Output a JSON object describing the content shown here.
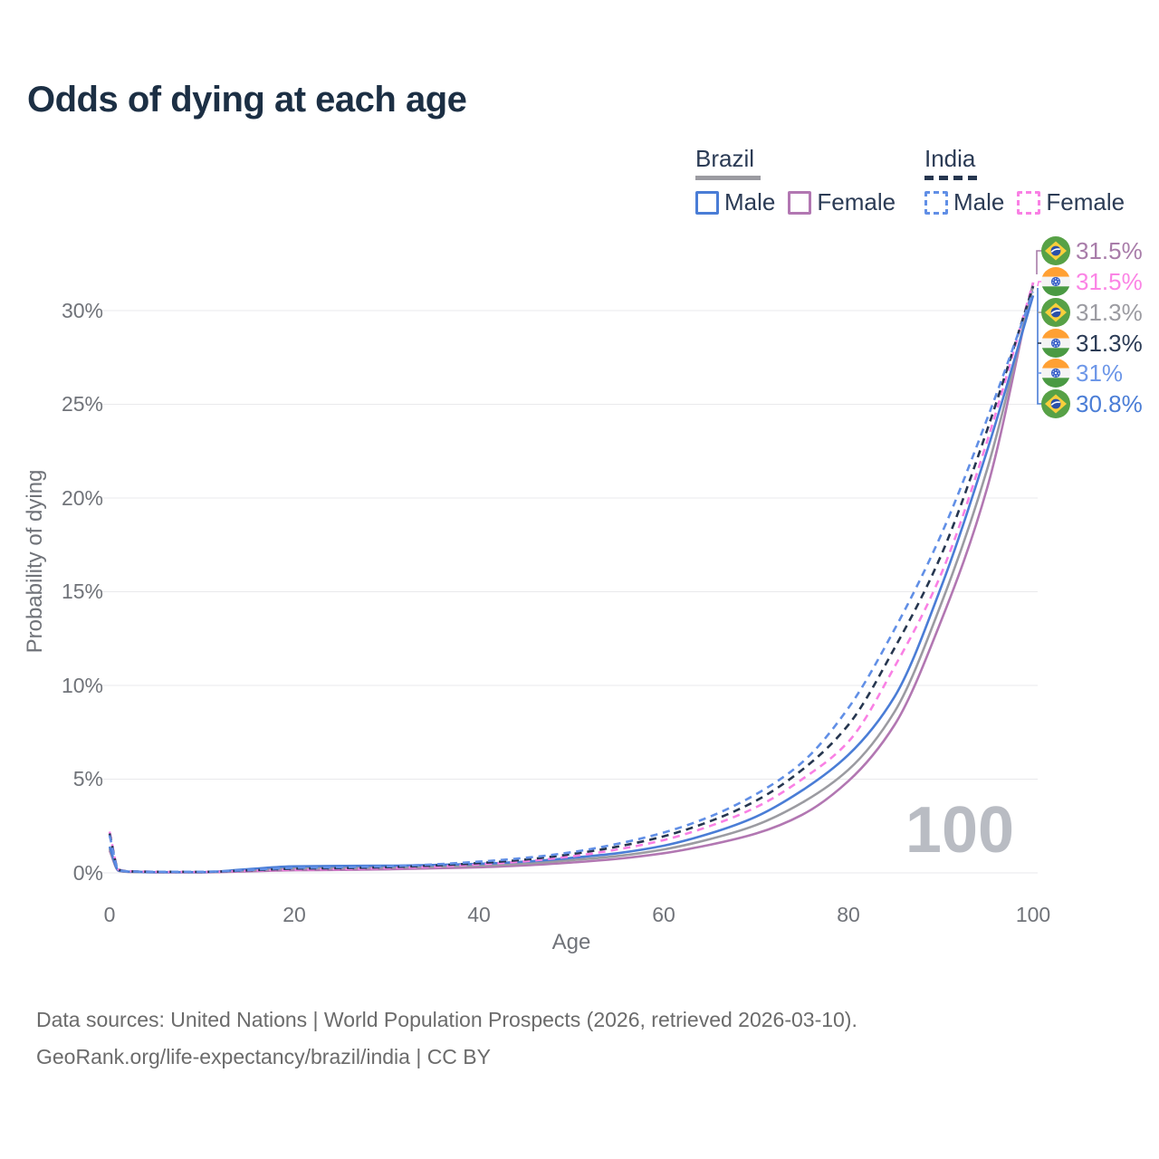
{
  "page": {
    "title": "Odds of dying at each age"
  },
  "legend": {
    "groups": [
      {
        "label": "Brazil",
        "style": "solid",
        "underline_color": "#9b9ba1",
        "items": [
          {
            "label": "Male",
            "color": "#4a7dd6"
          },
          {
            "label": "Female",
            "color": "#b277b2"
          }
        ]
      },
      {
        "label": "India",
        "style": "dashed",
        "underline_color": "#26364f",
        "items": [
          {
            "label": "Male",
            "color": "#618fe6"
          },
          {
            "label": "Female",
            "color": "#f980e4"
          }
        ]
      }
    ]
  },
  "chart_data": {
    "type": "line",
    "title": "Odds of dying at each age",
    "xlabel": "Age",
    "ylabel": "Probability of dying",
    "xlim": [
      0,
      100
    ],
    "ylim_percent": [
      0,
      31.5
    ],
    "grid": "horizontal",
    "xticks": [
      "0",
      "20",
      "40",
      "60",
      "80",
      "100"
    ],
    "xtick_values": [
      0,
      20,
      40,
      60,
      80,
      100
    ],
    "yticks": [
      "0%",
      "5%",
      "10%",
      "15%",
      "20%",
      "25%",
      "30%"
    ],
    "ytick_values": [
      0,
      5,
      10,
      15,
      20,
      25,
      30
    ],
    "watermark": "100",
    "ages": [
      0,
      1,
      2,
      5,
      10,
      15,
      20,
      25,
      30,
      35,
      40,
      45,
      50,
      55,
      60,
      65,
      70,
      75,
      80,
      85,
      90,
      95,
      100
    ],
    "series": [
      {
        "name": "Brazil Female",
        "country": "Brazil",
        "sex": "Female",
        "style": "solid",
        "color": "#b277b2",
        "values_percent": [
          1.2,
          0.1,
          0.05,
          0.03,
          0.03,
          0.08,
          0.14,
          0.16,
          0.19,
          0.24,
          0.3,
          0.4,
          0.55,
          0.75,
          1.05,
          1.5,
          2.1,
          3.1,
          4.9,
          7.9,
          13.4,
          20.5,
          31.5
        ],
        "end_value": "31.5%"
      },
      {
        "name": "Brazil",
        "country": "Brazil",
        "sex": "Both",
        "style": "solid",
        "color": "#9b9ba1",
        "values_percent": [
          1.3,
          0.11,
          0.06,
          0.035,
          0.035,
          0.14,
          0.25,
          0.27,
          0.29,
          0.33,
          0.39,
          0.5,
          0.68,
          0.9,
          1.25,
          1.8,
          2.55,
          3.75,
          5.5,
          8.6,
          14.3,
          21.5,
          31.3
        ],
        "end_value": "31.3%"
      },
      {
        "name": "Brazil Male",
        "country": "Brazil",
        "sex": "Male",
        "style": "solid",
        "color": "#4a7dd6",
        "values_percent": [
          1.4,
          0.12,
          0.07,
          0.04,
          0.04,
          0.2,
          0.35,
          0.37,
          0.38,
          0.42,
          0.48,
          0.6,
          0.8,
          1.05,
          1.45,
          2.1,
          3.0,
          4.4,
          6.3,
          9.4,
          15.2,
          22.5,
          30.8
        ],
        "end_value": "30.8%"
      },
      {
        "name": "India Female",
        "country": "India",
        "sex": "Female",
        "style": "dashed",
        "color": "#f980e4",
        "values_percent": [
          2.2,
          0.17,
          0.09,
          0.06,
          0.05,
          0.11,
          0.17,
          0.2,
          0.25,
          0.33,
          0.45,
          0.62,
          0.88,
          1.25,
          1.75,
          2.5,
          3.5,
          5.0,
          7.0,
          11.0,
          15.9,
          23.0,
          31.5
        ],
        "end_value": "31.5%"
      },
      {
        "name": "India",
        "country": "India",
        "sex": "Both",
        "style": "dashed",
        "color": "#26364f",
        "values_percent": [
          2.1,
          0.16,
          0.08,
          0.06,
          0.055,
          0.13,
          0.22,
          0.25,
          0.3,
          0.39,
          0.52,
          0.71,
          1.0,
          1.4,
          1.95,
          2.75,
          3.85,
          5.5,
          7.9,
          12.0,
          16.9,
          23.6,
          31.3
        ],
        "end_value": "31.3%"
      },
      {
        "name": "India Male",
        "country": "India",
        "sex": "Male",
        "style": "dashed",
        "color": "#618fe6",
        "values_percent": [
          2.0,
          0.15,
          0.08,
          0.06,
          0.06,
          0.15,
          0.27,
          0.3,
          0.35,
          0.45,
          0.6,
          0.8,
          1.1,
          1.55,
          2.15,
          3.0,
          4.2,
          5.9,
          8.8,
          13.0,
          18.0,
          24.2,
          31.0
        ],
        "end_value": "31.0%"
      }
    ],
    "end_labels": [
      {
        "flag": "brazil",
        "flag_ref": "#flag-brazil",
        "series": "Brazil Female",
        "text": "31.5%",
        "color": "#a87ca9"
      },
      {
        "flag": "india",
        "flag_ref": "#flag-india",
        "series": "India Female",
        "text": "31.5%",
        "color": "#fb84e5"
      },
      {
        "flag": "brazil",
        "flag_ref": "#flag-brazil",
        "series": "Brazil",
        "text": "31.3%",
        "color": "#9b9ba1"
      },
      {
        "flag": "india",
        "flag_ref": "#flag-india",
        "series": "India",
        "text": "31.3%",
        "color": "#2b3b55"
      },
      {
        "flag": "india",
        "flag_ref": "#flag-india",
        "series": "India Male",
        "text": "31%",
        "color": "#6d97e8"
      },
      {
        "flag": "brazil",
        "flag_ref": "#flag-brazil",
        "series": "Brazil Male",
        "text": "30.8%",
        "color": "#4a7dd6"
      }
    ]
  },
  "footer": {
    "line1": "Data sources: United Nations | World Population Prospects (2026, retrieved 2026-03-10).",
    "line2": "GeoRank.org/life-expectancy/brazil/india | CC BY"
  }
}
